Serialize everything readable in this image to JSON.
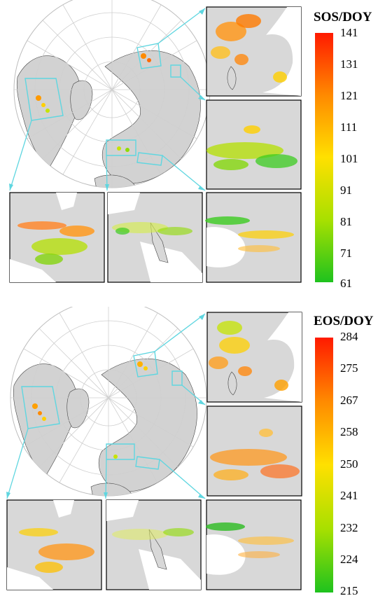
{
  "panels": [
    {
      "id": "sos",
      "legend_title": "SOS/DOY",
      "ticks": [
        "141",
        "131",
        "121",
        "111",
        "101",
        "91",
        "81",
        "71",
        "61"
      ],
      "gradient": [
        "#ff1a00",
        "#ff8a00",
        "#ffe000",
        "#a8e000",
        "#1ec21e"
      ]
    },
    {
      "id": "eos",
      "legend_title": "EOS/DOY",
      "ticks": [
        "284",
        "275",
        "267",
        "258",
        "250",
        "241",
        "232",
        "224",
        "215"
      ],
      "gradient": [
        "#ff1a00",
        "#ff8a00",
        "#ffe000",
        "#a8e000",
        "#1ec21e"
      ]
    }
  ],
  "colors": {
    "frame": "#5fd6e0",
    "land": "#d2d2d2",
    "coast": "#444444",
    "grid": "#c9c9c9"
  }
}
